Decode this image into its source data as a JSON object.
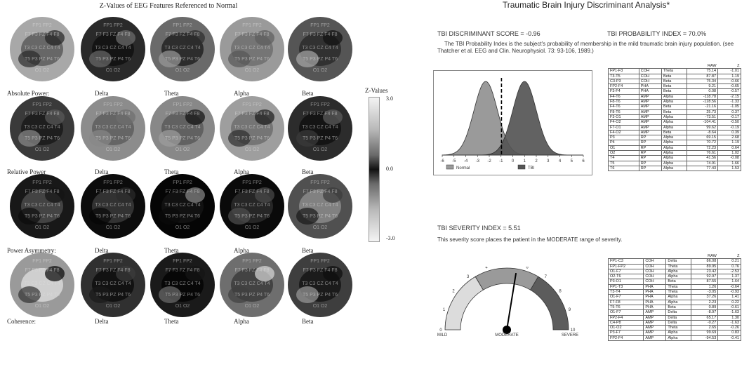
{
  "left_panel": {
    "title": "Z-Values of EEG Features Referenced to Normal",
    "rows": [
      {
        "label": "Absolute Power:",
        "bands": [
          "Delta",
          "Theta",
          "Alpha",
          "Beta"
        ]
      },
      {
        "label": "Relative Power",
        "bands": [
          "Delta",
          "Theta",
          "Alpha",
          "Beta"
        ]
      },
      {
        "label": "Power Asymmetry:",
        "bands": [
          "Delta",
          "Theta",
          "Alpha",
          "Beta"
        ]
      },
      {
        "label": "Coherence:",
        "bands": [
          "Delta",
          "Theta",
          "Alpha",
          "Beta"
        ]
      }
    ],
    "scale": {
      "title": "Z-Values",
      "max": "3.0",
      "mid": "0.0",
      "min": "-3.0"
    },
    "electrodes": {
      "fp": "FP1 FP2",
      "front": "F7 F3 FZ F4 F8",
      "central": "T3 C3 CZ C4 T4",
      "parietal": "T5 P3 PZ P4 T6",
      "occipital": "O1 O2"
    }
  },
  "right_panel": {
    "title": "Traumatic Brain Injury Discriminant Analysis*",
    "discriminant_score_label": "TBI DISCRIMINANT SCORE = -0.96",
    "probability_index_label": "TBI PROBABILITY INDEX = 70.0%",
    "probability_note": "The TBI Probability Index is the subject's probability of membership in the mild traumatic brain injury population. (see Thatcher et al. EEG and Clin. Neurophysiol. 73: 93-106, 1989.)",
    "distribution": {
      "x_ticks": [
        "-6",
        "-5",
        "-4",
        "-3",
        "-2",
        "-1",
        "0",
        "1",
        "2",
        "3",
        "4",
        "5",
        "6"
      ],
      "legend": [
        {
          "name": "Normal",
          "color": "#9a9a9a"
        },
        {
          "name": "TBI",
          "color": "#555555"
        }
      ],
      "normal_mean": -2.3,
      "tbi_mean": 1.0,
      "score": -0.96
    },
    "table1": {
      "headers": [
        "",
        "",
        "",
        "RAW",
        "Z"
      ],
      "rows": [
        [
          "FP1-F3",
          "COH",
          "Theta",
          "75.14",
          "-1.01"
        ],
        [
          "T3-T5",
          "COH",
          "Beta",
          "87.87",
          "1.19"
        ],
        [
          "C3-P3",
          "COH",
          "Beta",
          "75.34",
          "-0.66"
        ],
        [
          "FP2-F4",
          "PHA",
          "Beta",
          "9.21",
          "-0.65"
        ],
        [
          "F3-F4",
          "PHA",
          "Beta",
          "0.08",
          "-0.57"
        ],
        [
          "F4-T6",
          "AMP",
          "Alpha",
          "-118.78",
          "-2.15"
        ],
        [
          "F8-T6",
          "AMP",
          "Alpha",
          "-128.56",
          "-1.33"
        ],
        [
          "F4-T6",
          "AMP",
          "Beta",
          "-21.16",
          "-1.05"
        ],
        [
          "F8-T6",
          "AMP",
          "Beta",
          "25.73",
          "0.37"
        ],
        [
          "F3-O1",
          "AMP",
          "Alpha",
          "-73.51",
          "-0.17"
        ],
        [
          "F4-O2",
          "AMP",
          "Alpha",
          "-104.41",
          "-0.50"
        ],
        [
          "F7-O1",
          "AMP",
          "Alpha",
          "99.62",
          "-0.19"
        ],
        [
          "F4-O2",
          "AMP",
          "Beta",
          "-8.64",
          "0.39"
        ],
        [
          "P3",
          "RP",
          "Alpha",
          "69.15",
          "2.68"
        ],
        [
          "P4",
          "RP",
          "Alpha",
          "70.72",
          "1.19"
        ],
        [
          "O1",
          "RP",
          "Alpha",
          "72.23",
          "0.64"
        ],
        [
          "O2",
          "RP",
          "Alpha",
          "76.61",
          "1.02"
        ],
        [
          "T4",
          "RP",
          "Alpha",
          "41.56",
          "-0.08"
        ],
        [
          "T5",
          "RP",
          "Alpha",
          "74.91",
          "1.66"
        ],
        [
          "T6",
          "RP",
          "Alpha",
          "77.43",
          "1.53"
        ]
      ]
    },
    "severity_label": "TBI SEVERITY INDEX = 5.51",
    "severity_note": "This severity score places the patient in the MODERATE range of severity.",
    "gauge": {
      "value": 5.51,
      "min": 0,
      "max": 10,
      "tick_labels": [
        "0",
        "1",
        "2",
        "3",
        "4",
        "5",
        "6",
        "7",
        "8",
        "9",
        "10"
      ],
      "zone_labels": [
        "MILD",
        "MODERATE",
        "SEVERE"
      ]
    },
    "table2": {
      "headers": [
        "",
        "",
        "",
        "RAW",
        "Z"
      ],
      "rows": [
        [
          "FP1-C3",
          "COH",
          "Delta",
          "86.08",
          "0.21"
        ],
        [
          "FP1-FP2",
          "COH",
          "Theta",
          "89.95",
          "0.76"
        ],
        [
          "O1-F7",
          "COH",
          "Alpha",
          "23.42",
          "-2.53"
        ],
        [
          "O2-T6",
          "COH",
          "Alpha",
          "92.97",
          "1.37"
        ],
        [
          "P3-O1",
          "COH",
          "Beta",
          "87.55",
          "1.64"
        ],
        [
          "FP1-T3",
          "PHA",
          "Theta",
          "1.26",
          "-0.64"
        ],
        [
          "T3-T4",
          "PHA",
          "Theta",
          "-3.05",
          "-0.93"
        ],
        [
          "O1-F7",
          "PHA",
          "Alpha",
          "37.26",
          "1.41"
        ],
        [
          "F7-F8",
          "PHA",
          "Alpha",
          "2.23",
          "0.22"
        ],
        [
          "T5-T6",
          "PHA",
          "Beta",
          "0.89",
          "-0.61"
        ],
        [
          "O1-F7",
          "AMP",
          "Delta",
          "-8.97",
          "-1.63"
        ],
        [
          "FP2-F4",
          "AMP",
          "Delta",
          "65.17",
          "1.30"
        ],
        [
          "C4-P8",
          "AMP",
          "Delta",
          "-0.27",
          "-1.63"
        ],
        [
          "O1-O2",
          "AMP",
          "Theta",
          "2.65",
          "-0.26"
        ],
        [
          "P3-F7",
          "AMP",
          "Alpha",
          "99.69",
          "0.83"
        ],
        [
          "FP2-F4",
          "AMP",
          "Alpha",
          "-94.53",
          "-0.41"
        ]
      ]
    }
  }
}
